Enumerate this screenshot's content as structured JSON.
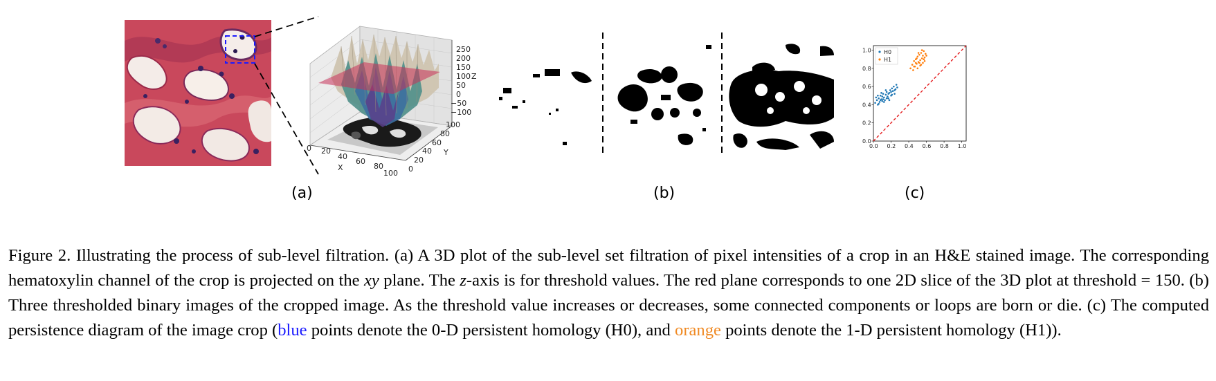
{
  "panels": {
    "a": {
      "label": "(a)"
    },
    "b": {
      "label": "(b)"
    },
    "c": {
      "label": "(c)"
    }
  },
  "plot3d": {
    "z_ticks": [
      "250",
      "200",
      "150",
      "100",
      "50",
      "0",
      "−50",
      "−100"
    ],
    "z_label": "Z",
    "x_ticks": [
      "0",
      "20",
      "40",
      "60",
      "80",
      "100"
    ],
    "x_label": "X",
    "y_ticks": [
      "0",
      "20",
      "40",
      "60",
      "80",
      "100"
    ],
    "y_label": "Y",
    "threshold_plane_color": "#c8325a"
  },
  "chart_data": {
    "type": "scatter",
    "title": "",
    "xlabel": "",
    "ylabel": "",
    "xlim": [
      0.0,
      1.05
    ],
    "ylim": [
      0.0,
      1.05
    ],
    "x_ticks": [
      "0.0",
      "0.2",
      "0.4",
      "0.6",
      "0.8",
      "1.0"
    ],
    "y_ticks": [
      "0.0",
      "0.2",
      "0.4",
      "0.6",
      "0.8",
      "1.0"
    ],
    "legend_position": "top-left",
    "diagonal": {
      "from": [
        0,
        0
      ],
      "to": [
        1.05,
        1.05
      ],
      "color": "#e41a1c",
      "style": "dashed"
    },
    "series": [
      {
        "name": "H0",
        "color": "#1f77b4",
        "points": [
          [
            0.02,
            0.42
          ],
          [
            0.04,
            0.45
          ],
          [
            0.05,
            0.4
          ],
          [
            0.06,
            0.47
          ],
          [
            0.07,
            0.43
          ],
          [
            0.08,
            0.5
          ],
          [
            0.09,
            0.46
          ],
          [
            0.1,
            0.44
          ],
          [
            0.11,
            0.52
          ],
          [
            0.12,
            0.48
          ],
          [
            0.13,
            0.45
          ],
          [
            0.14,
            0.51
          ],
          [
            0.15,
            0.54
          ],
          [
            0.16,
            0.49
          ],
          [
            0.17,
            0.47
          ],
          [
            0.18,
            0.53
          ],
          [
            0.19,
            0.56
          ],
          [
            0.2,
            0.5
          ],
          [
            0.21,
            0.58
          ],
          [
            0.22,
            0.55
          ],
          [
            0.23,
            0.6
          ],
          [
            0.24,
            0.52
          ],
          [
            0.25,
            0.57
          ],
          [
            0.26,
            0.62
          ],
          [
            0.27,
            0.59
          ],
          [
            0.03,
            0.48
          ],
          [
            0.06,
            0.41
          ],
          [
            0.09,
            0.53
          ],
          [
            0.12,
            0.43
          ],
          [
            0.15,
            0.47
          ],
          [
            0.18,
            0.45
          ],
          [
            0.21,
            0.51
          ],
          [
            0.24,
            0.56
          ],
          [
            0.1,
            0.49
          ],
          [
            0.14,
            0.56
          ],
          [
            0.08,
            0.45
          ],
          [
            0.17,
            0.52
          ],
          [
            0.2,
            0.54
          ],
          [
            0.05,
            0.5
          ],
          [
            0.11,
            0.46
          ]
        ]
      },
      {
        "name": "H1",
        "color": "#ff7f0e",
        "points": [
          [
            0.42,
            0.8
          ],
          [
            0.44,
            0.84
          ],
          [
            0.45,
            0.78
          ],
          [
            0.46,
            0.88
          ],
          [
            0.47,
            0.82
          ],
          [
            0.48,
            0.9
          ],
          [
            0.49,
            0.85
          ],
          [
            0.5,
            0.93
          ],
          [
            0.51,
            0.87
          ],
          [
            0.52,
            0.95
          ],
          [
            0.53,
            0.89
          ],
          [
            0.54,
            0.97
          ],
          [
            0.55,
            0.91
          ],
          [
            0.56,
            0.94
          ],
          [
            0.57,
            0.99
          ],
          [
            0.58,
            0.92
          ],
          [
            0.59,
            0.96
          ],
          [
            0.5,
            0.8
          ],
          [
            0.53,
            0.83
          ],
          [
            0.56,
            0.86
          ],
          [
            0.46,
            0.82
          ],
          [
            0.49,
            0.91
          ],
          [
            0.52,
            0.86
          ],
          [
            0.55,
            1.0
          ],
          [
            0.58,
            0.88
          ],
          [
            0.48,
            0.86
          ],
          [
            0.51,
            0.97
          ],
          [
            0.54,
            0.84
          ],
          [
            0.57,
            0.9
          ],
          [
            0.6,
            0.94
          ]
        ]
      }
    ]
  },
  "caption": {
    "p1": "Figure 2. Illustrating the process of sub-level filtration. (a) A 3D plot of the sub-level set filtration of pixel intensities of a crop in an H&E stained image. The corresponding hematoxylin channel of the crop is projected on the ",
    "xy": "xy",
    "p2": " plane. The ",
    "z": "z",
    "p3": "-axis is for threshold values. The red plane corresponds to one 2D slice of the 3D plot at threshold = 150. (b) Three thresholded binary images of the cropped image. As the threshold value increases or decreases, some connected components or loops are born or die. (c) The computed persistence diagram of the image crop (",
    "blue_word": "blue",
    "p4": " points denote the 0-D persistent homology (H0), and ",
    "orange_word": "orange",
    "p5": " points denote the 1-D persistent homology (H1)).",
    "blue_color": "#1a1aff",
    "orange_color": "#f08a24"
  }
}
